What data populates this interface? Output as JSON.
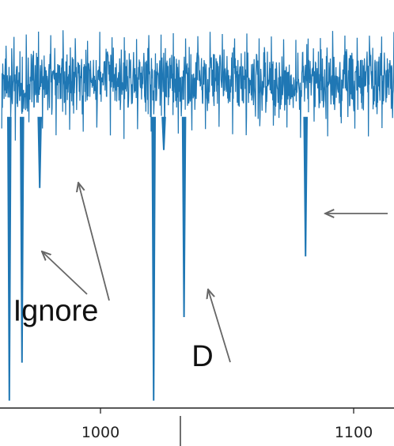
{
  "chart_data": {
    "type": "line",
    "title": "",
    "xlabel": "",
    "ylabel": "",
    "grid": false,
    "legend": "none",
    "colors": {
      "series": "#1f77b4",
      "axis": "#222222",
      "arrow": "#666666",
      "text": "#111111"
    },
    "x_ticks": [
      {
        "value": 1000,
        "label": "1000"
      },
      {
        "value": 1100,
        "label": "1100"
      }
    ],
    "xlim": [
      961,
      1118
    ],
    "series": [
      {
        "baseline_band": {
          "x_start": 961,
          "x_end": 1118,
          "low": -0.52,
          "high": 0.52,
          "upper_peak": 0.7
        },
        "dips": [
          {
            "x": 964,
            "y": -4.2
          },
          {
            "x": 969,
            "y": -3.7
          },
          {
            "x": 976,
            "y": -1.4
          },
          {
            "x": 1021,
            "y": -4.2
          },
          {
            "x": 1025,
            "y": -0.9
          },
          {
            "x": 1033,
            "y": -3.1
          },
          {
            "x": 1081,
            "y": -2.3
          }
        ]
      }
    ],
    "annotations": [
      {
        "text": "Ignore",
        "x": 965.5,
        "y": -3.15
      },
      {
        "text": "D",
        "x": 1036,
        "y": -3.75
      },
      {
        "text": "",
        "x": 1081,
        "y": -1.8,
        "arrow_only": true
      }
    ]
  }
}
